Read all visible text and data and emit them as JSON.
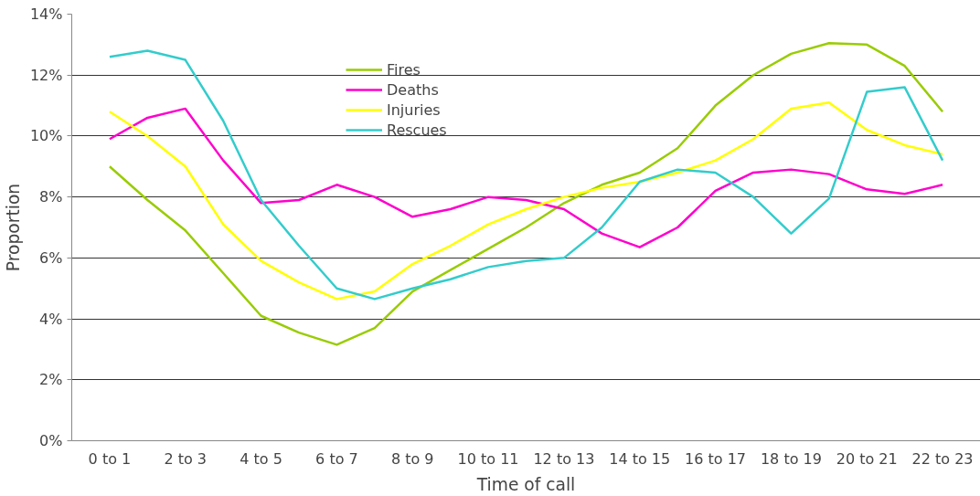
{
  "chart_data": {
    "type": "line",
    "xlabel": "Time of call",
    "ylabel": "Proportion",
    "categories": [
      "0 to 1",
      null,
      "2 to 3",
      null,
      "4 to 5",
      null,
      "6 to 7",
      null,
      "8 to 9",
      null,
      "10 to 11",
      null,
      "12 to 13",
      null,
      "14 to 15",
      null,
      "16 to 17",
      null,
      "18 to 19",
      null,
      "20 to 21",
      null,
      "22 to 23"
    ],
    "series": [
      {
        "name": "Fires",
        "color": "#99cc00",
        "values": [
          9.0,
          7.9,
          6.9,
          5.5,
          4.1,
          3.55,
          3.15,
          3.7,
          4.9,
          5.6,
          6.3,
          7.0,
          7.8,
          8.4,
          8.8,
          9.6,
          11.0,
          12.0,
          12.7,
          13.05,
          13.0,
          12.3,
          10.8
        ]
      },
      {
        "name": "Deaths",
        "color": "#ff00cc",
        "values": [
          9.9,
          10.6,
          10.9,
          9.2,
          7.8,
          7.9,
          8.4,
          8.0,
          7.35,
          7.6,
          8.0,
          7.9,
          7.6,
          6.8,
          6.35,
          7.0,
          8.2,
          8.8,
          8.9,
          8.75,
          8.25,
          8.1,
          8.4
        ]
      },
      {
        "name": "Injuries",
        "color": "#ffff00",
        "values": [
          10.8,
          10.0,
          9.0,
          7.1,
          5.9,
          5.2,
          4.65,
          4.9,
          5.8,
          6.4,
          7.1,
          7.6,
          8.0,
          8.3,
          8.5,
          8.8,
          9.2,
          9.9,
          10.9,
          11.1,
          10.2,
          9.7,
          9.4
        ]
      },
      {
        "name": "Rescues",
        "color": "#33cccc",
        "values": [
          12.6,
          12.8,
          12.5,
          10.5,
          7.9,
          6.4,
          5.0,
          4.65,
          5.0,
          5.3,
          5.7,
          5.9,
          6.0,
          7.0,
          8.5,
          8.9,
          8.8,
          8.0,
          6.8,
          7.95,
          11.45,
          11.6,
          9.2
        ]
      }
    ],
    "ylim": [
      0,
      14
    ],
    "yticks": [
      {
        "value": 0,
        "label": "0%"
      },
      {
        "value": 2,
        "label": "2%"
      },
      {
        "value": 4,
        "label": "4%"
      },
      {
        "value": 6,
        "label": "6%"
      },
      {
        "value": 8,
        "label": "8%"
      },
      {
        "value": 10,
        "label": "10%"
      },
      {
        "value": 12,
        "label": "12%"
      },
      {
        "value": 14,
        "label": "14%"
      }
    ],
    "grid": "y",
    "legend": "top left",
    "marker": "none",
    "line_style": "solid"
  }
}
